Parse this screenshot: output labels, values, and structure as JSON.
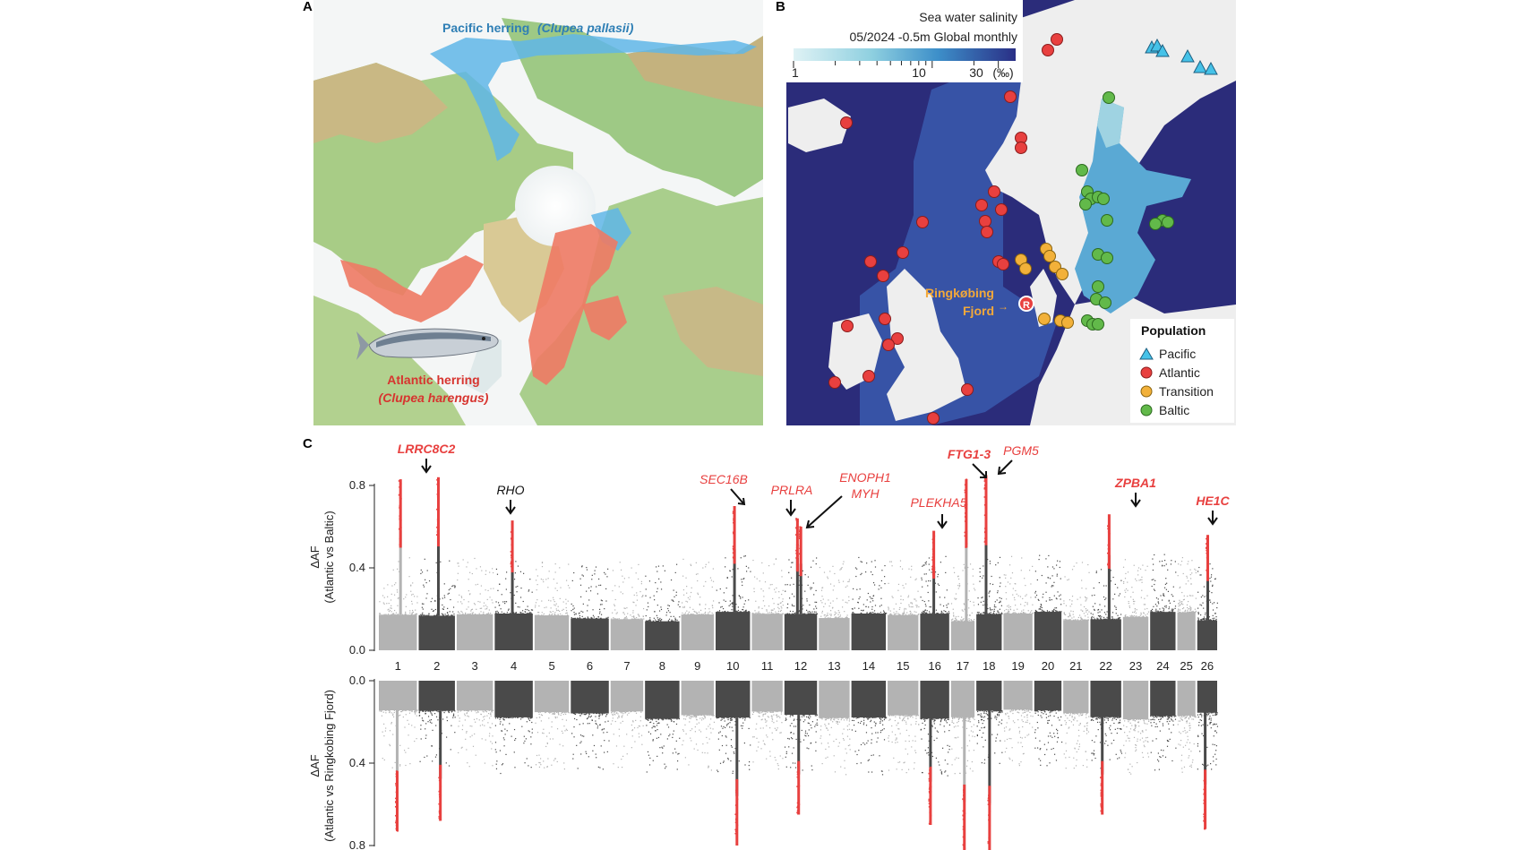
{
  "panels": {
    "a": {
      "letter": "A",
      "pacific_label": "Pacific herring",
      "pacific_species": "(Clupea pallasii)",
      "atlantic_label": "Atlantic herring",
      "atlantic_species": "(Clupea harengus)"
    },
    "b": {
      "letter": "B",
      "salinity_title": "Sea water salinity",
      "salinity_meta": "05/2024   -0.5m   Global monthly",
      "scale_ticks": [
        "1",
        "10",
        "30"
      ],
      "scale_unit": "(‰)",
      "ringkobing_line1": "Ringkøbing",
      "ringkobing_line2": "Fjord",
      "ringkobing_marker": "R",
      "legend_title": "Population",
      "legend": [
        {
          "name": "Pacific",
          "color": "#45c2e8",
          "shape": "triangle"
        },
        {
          "name": "Atlantic",
          "color": "#e8403f",
          "shape": "circle"
        },
        {
          "name": "Transition",
          "color": "#f2b13a",
          "shape": "circle"
        },
        {
          "name": "Baltic",
          "color": "#62b94a",
          "shape": "circle"
        }
      ]
    },
    "c": {
      "letter": "C",
      "top_ylabel_line1": "ΔAF",
      "top_ylabel_line2": "(Atlantic vs Baltic)",
      "bottom_ylabel_line1": "ΔAF",
      "bottom_ylabel_line2": "(Atlantic vs Ringkobing Fjord)",
      "top_yticks": [
        "0.8",
        "0.4",
        "0.0"
      ],
      "bottom_yticks": [
        "0.0",
        "0.4",
        "0.8"
      ],
      "chromosomes": [
        "1",
        "2",
        "3",
        "4",
        "5",
        "6",
        "7",
        "8",
        "9",
        "10",
        "11",
        "12",
        "13",
        "14",
        "15",
        "16",
        "17",
        "18",
        "19",
        "20",
        "21",
        "22",
        "23",
        "24",
        "25",
        "26"
      ],
      "gene_labels": [
        {
          "text": "LRRC8C2",
          "color": "#e8403f",
          "bold": true
        },
        {
          "text": "RHO",
          "color": "#111111",
          "bold": false
        },
        {
          "text": "SEC16B",
          "color": "#e8403f",
          "bold": false
        },
        {
          "text": "PRLRA",
          "color": "#e8403f",
          "bold": false
        },
        {
          "text": "ENOPH1",
          "color": "#e8403f",
          "bold": false
        },
        {
          "text": "MYH",
          "color": "#e8403f",
          "bold": false
        },
        {
          "text": "PLEKHA5",
          "color": "#e8403f",
          "bold": false
        },
        {
          "text": "FTG1-3",
          "color": "#e8403f",
          "bold": true
        },
        {
          "text": "PGM5",
          "color": "#e8403f",
          "bold": false
        },
        {
          "text": "ZPBA1",
          "color": "#e8403f",
          "bold": true
        },
        {
          "text": "HE1C",
          "color": "#e8403f",
          "bold": true
        }
      ]
    }
  },
  "chart_data": {
    "type": "scatter",
    "kind": "manhattan",
    "chromosomes": [
      "1",
      "2",
      "3",
      "4",
      "5",
      "6",
      "7",
      "8",
      "9",
      "10",
      "11",
      "12",
      "13",
      "14",
      "15",
      "16",
      "17",
      "18",
      "19",
      "20",
      "21",
      "22",
      "23",
      "24",
      "25",
      "26"
    ],
    "series": [
      {
        "name": "Atlantic vs Baltic",
        "ylim": [
          0,
          0.8
        ],
        "peaks": [
          {
            "chrom": "1",
            "delta_af": 0.83
          },
          {
            "chrom": "2",
            "delta_af": 0.84,
            "gene": "LRRC8C2"
          },
          {
            "chrom": "4",
            "delta_af": 0.63,
            "gene": "RHO"
          },
          {
            "chrom": "10",
            "delta_af": 0.7,
            "gene": "SEC16B"
          },
          {
            "chrom": "12",
            "delta_af": 0.64,
            "gene": "PRLRA"
          },
          {
            "chrom": "12",
            "delta_af": 0.6,
            "gene": "ENOPH1 MYH"
          },
          {
            "chrom": "16",
            "delta_af": 0.58,
            "gene": "PLEKHA5"
          },
          {
            "chrom": "17",
            "delta_af": 0.83,
            "gene": "FTG1-3"
          },
          {
            "chrom": "18",
            "delta_af": 0.85,
            "gene": "PGM5"
          },
          {
            "chrom": "22",
            "delta_af": 0.66,
            "gene": "ZPBA1"
          },
          {
            "chrom": "26",
            "delta_af": 0.56,
            "gene": "HE1C"
          }
        ]
      },
      {
        "name": "Atlantic vs Ringkobing Fjord",
        "ylim": [
          0,
          0.8
        ],
        "peaks": [
          {
            "chrom": "1",
            "delta_af": 0.73
          },
          {
            "chrom": "2",
            "delta_af": 0.68
          },
          {
            "chrom": "10",
            "delta_af": 0.8
          },
          {
            "chrom": "12",
            "delta_af": 0.65
          },
          {
            "chrom": "16",
            "delta_af": 0.7
          },
          {
            "chrom": "17",
            "delta_af": 0.84
          },
          {
            "chrom": "18",
            "delta_af": 0.85
          },
          {
            "chrom": "22",
            "delta_af": 0.65
          },
          {
            "chrom": "26",
            "delta_af": 0.72
          }
        ]
      }
    ]
  }
}
